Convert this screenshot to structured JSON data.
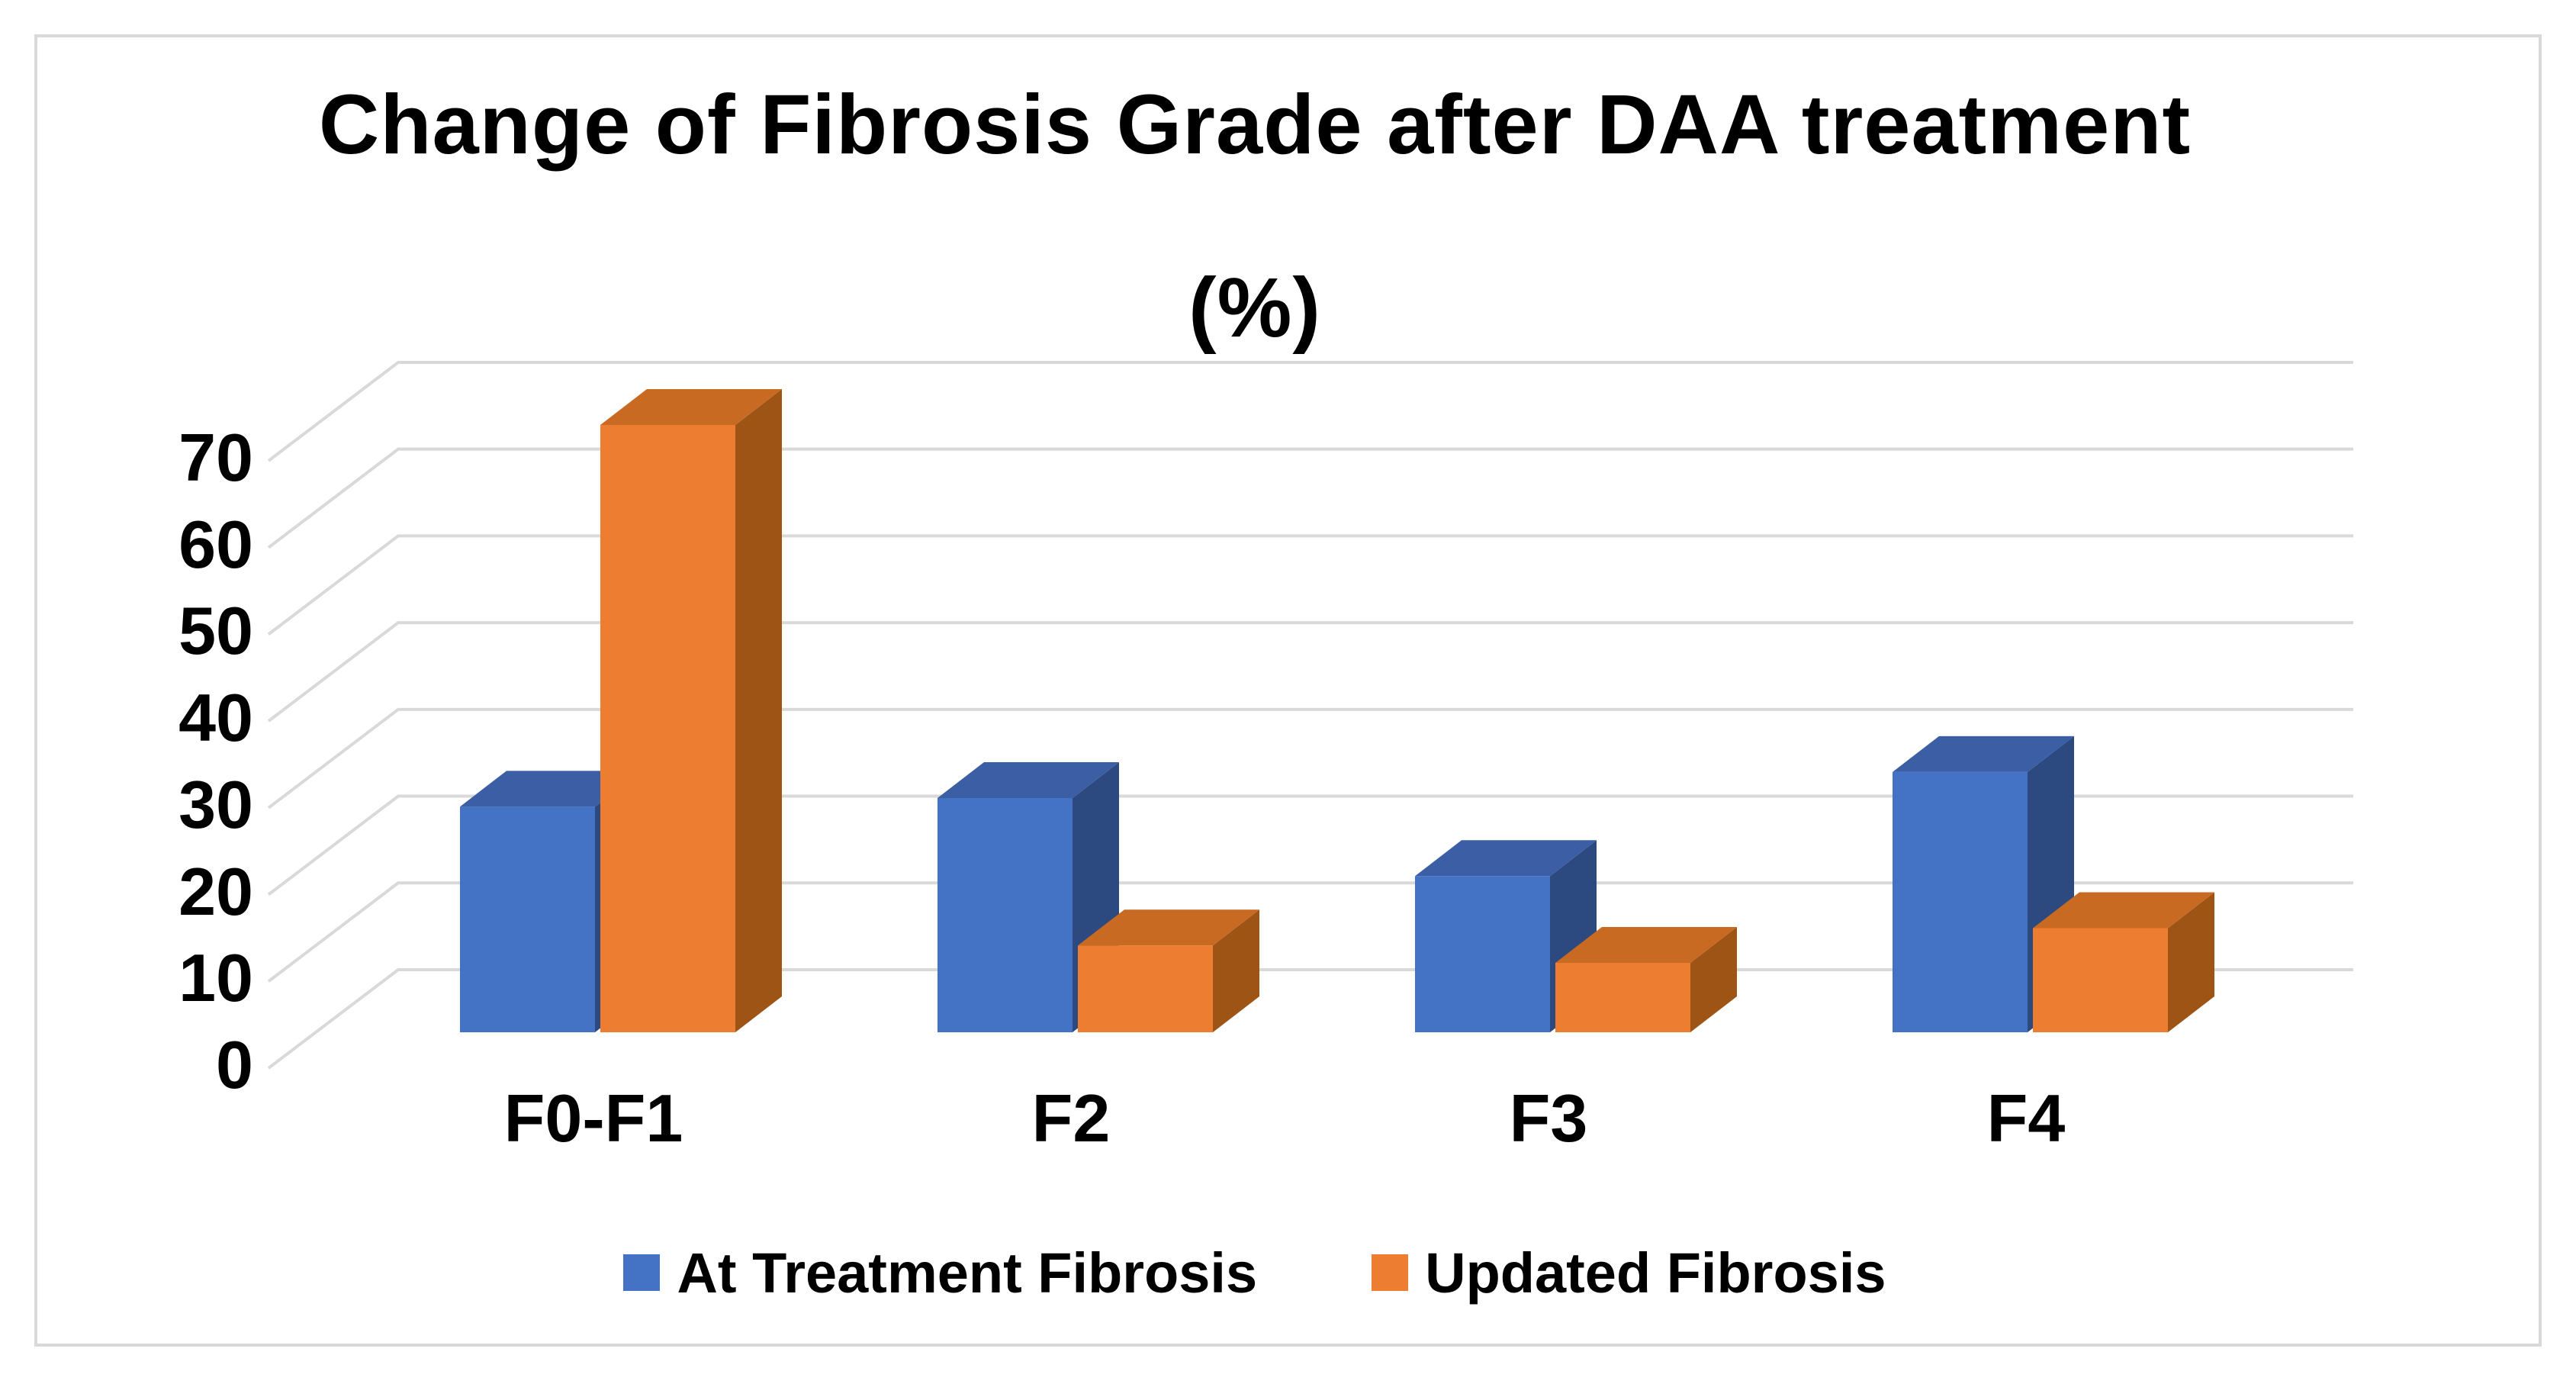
{
  "title": {
    "line1": "Change of Fibrosis Grade after DAA treatment",
    "line2": "(%)"
  },
  "chart_data": {
    "type": "bar",
    "projection": "3d-column",
    "title": "Change of Fibrosis Grade after DAA treatment (%)",
    "xlabel": "",
    "ylabel": "",
    "categories": [
      "F0-F1",
      "F2",
      "F3",
      "F4"
    ],
    "series": [
      {
        "name": "At Treatment Fibrosis",
        "values": [
          26,
          27,
          18,
          30
        ],
        "color_front": "#4472C4",
        "color_top": "#3B5EA5",
        "color_side": "#2C4A80"
      },
      {
        "name": "Updated Fibrosis",
        "values": [
          70,
          10,
          8,
          12
        ],
        "color_front": "#ED7D31",
        "color_top": "#C96A22",
        "color_side": "#9E5414"
      }
    ],
    "ylim": [
      0,
      70
    ],
    "yticks": [
      0,
      10,
      20,
      30,
      40,
      50,
      60,
      70
    ],
    "grid": true,
    "gridline_color": "#D9D9D9",
    "legend_position": "bottom"
  },
  "legend": {
    "items": [
      {
        "label": "At Treatment Fibrosis",
        "color": "#4472C4"
      },
      {
        "label": "Updated Fibrosis",
        "color": "#ED7D31"
      }
    ]
  }
}
